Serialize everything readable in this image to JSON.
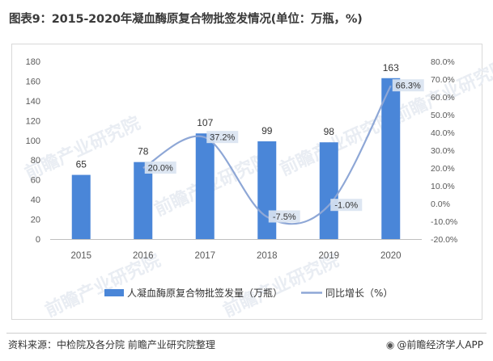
{
  "title": "图表9：2015-2020年凝血酶原复合物批签发情况(单位：万瓶，%)",
  "source": "资料来源：中检院及各分院 前瞻产业研究院整理",
  "brand": "@前瞻经济学人APP",
  "watermark": "前瞻产业研究院",
  "colors": {
    "bar": "#4a86d8",
    "line": "#8ea7d6",
    "label_box": "#d9e3f1",
    "axis_text": "#595959"
  },
  "chart_data": {
    "type": "bar",
    "categories": [
      "2015",
      "2016",
      "2017",
      "2018",
      "2019",
      "2020"
    ],
    "series": [
      {
        "name": "人凝血酶原复合物批签发量（万瓶）",
        "type": "bar",
        "axis": "left",
        "values": [
          65,
          78,
          107,
          99,
          98,
          163
        ],
        "labels": [
          "65",
          "78",
          "107",
          "99",
          "98",
          "163"
        ]
      },
      {
        "name": "同比增长（%）",
        "type": "line",
        "axis": "right",
        "values": [
          null,
          20.0,
          37.2,
          -7.5,
          -1.0,
          66.3
        ],
        "labels": [
          "",
          "20.0%",
          "37.2%",
          "-7.5%",
          "-1.0%",
          "66.3%"
        ]
      }
    ],
    "left_axis": {
      "ylim": [
        0,
        180
      ],
      "ticks": [
        "0",
        "20",
        "40",
        "60",
        "80",
        "100",
        "120",
        "140",
        "160",
        "180"
      ]
    },
    "right_axis": {
      "ylim": [
        -20,
        80
      ],
      "ticks": [
        "-20.0%",
        "-10.0%",
        "0.0%",
        "10.0%",
        "20.0%",
        "30.0%",
        "40.0%",
        "50.0%",
        "60.0%",
        "70.0%",
        "80.0%"
      ]
    },
    "legend_position": "bottom",
    "grid": false
  }
}
